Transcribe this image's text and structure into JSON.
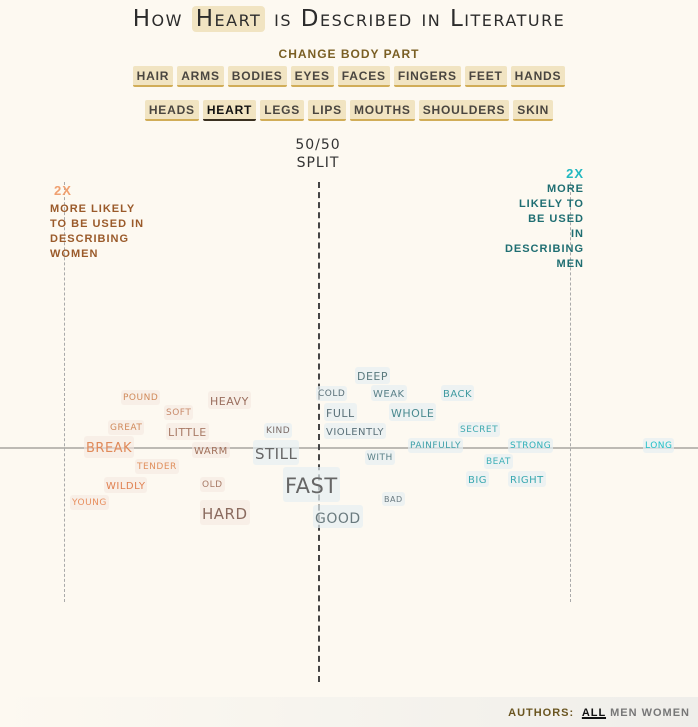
{
  "title": {
    "prefix": "How",
    "part": "Heart",
    "suffix": "is Described in Literature"
  },
  "body_part_label": "CHANGE BODY PART",
  "body_parts_row1": [
    "HAIR",
    "ARMS",
    "BODIES",
    "EYES",
    "FACES",
    "FINGERS",
    "FEET",
    "HANDS"
  ],
  "body_parts_row2": [
    "HEADS",
    "HEART",
    "LEGS",
    "LIPS",
    "MOUTHS",
    "SHOULDERS",
    "SKIN"
  ],
  "selected_part": "HEART",
  "colors": {
    "women": "#e08a5a",
    "men": "#22b8c0",
    "background": "#fdf9f1"
  },
  "chart_data": {
    "type": "scatter",
    "title": "How Heart is Described in Literature",
    "center_label_line1": "50/50",
    "center_label_line2": "SPLIT",
    "left_annotation": {
      "value": "2X",
      "text": [
        "MORE LIKELY",
        "TO BE USED IN",
        "DESCRIBING",
        "WOMEN"
      ]
    },
    "right_annotation": {
      "value": "2X",
      "text": [
        "MORE",
        "LIKELY TO",
        "BE USED",
        "IN",
        "DESCRIBING",
        "MEN"
      ]
    },
    "words": [
      "pound",
      "soft",
      "great",
      "little",
      "heavy",
      "break",
      "warm",
      "kind",
      "still",
      "tender",
      "wildly",
      "old",
      "young",
      "hard",
      "fast",
      "good",
      "deep",
      "cold",
      "weak",
      "back",
      "full",
      "whole",
      "violently",
      "secret",
      "with",
      "painfully",
      "strong",
      "beat",
      "big",
      "right",
      "bad",
      "long"
    ]
  },
  "footer": {
    "label": "AUTHORS:",
    "options": [
      "ALL",
      "MEN",
      "WOMEN"
    ],
    "selected": "ALL"
  }
}
